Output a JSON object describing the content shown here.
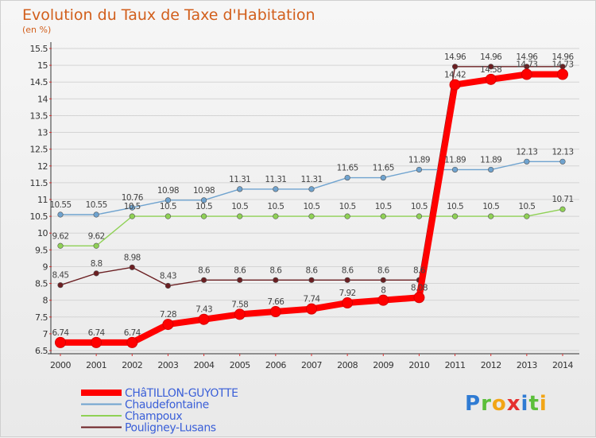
{
  "title": "Evolution du Taux de Taxe d'Habitation",
  "subtitle": "(en %)",
  "brand": {
    "letters": [
      "P",
      "r",
      "o",
      "x",
      "i",
      "t",
      "i"
    ],
    "colors": [
      "#2f7bd3",
      "#5bbf3a",
      "#f2a516",
      "#e53030",
      "#2f7bd3",
      "#5bbf3a",
      "#f2a516"
    ]
  },
  "chart_data": {
    "type": "line",
    "x": [
      2000,
      2001,
      2002,
      2003,
      2004,
      2005,
      2006,
      2007,
      2008,
      2009,
      2010,
      2011,
      2012,
      2013,
      2014
    ],
    "x_labels": [
      "2000",
      "2001",
      "2002",
      "2003",
      "2004",
      "2005",
      "2006",
      "2007",
      "2008",
      "2009",
      "2010",
      "2011",
      "2012",
      "2013",
      "2014"
    ],
    "ylim": [
      6.5,
      15.5
    ],
    "y_ticks": [
      6.5,
      7,
      7.5,
      8,
      8.5,
      9,
      9.5,
      10,
      10.5,
      11,
      11.5,
      12,
      12.5,
      13,
      13.5,
      14,
      14.5,
      15,
      15.5
    ],
    "y_tick_labels": [
      "6.5",
      "7",
      "7.5",
      "8",
      "8.5",
      "9",
      "9.5",
      "10",
      "10.5",
      "11",
      "11.5",
      "12",
      "12.5",
      "13",
      "13.5",
      "14",
      "14.5",
      "15",
      "15.5"
    ],
    "grid": "horizontal",
    "legend_position": "bottom-left",
    "series": [
      {
        "name": "Pouligney-Lusans",
        "color": "#6b1f22",
        "values": [
          8.45,
          8.8,
          8.98,
          8.43,
          8.6,
          8.6,
          8.6,
          8.6,
          8.6,
          8.6,
          8.6,
          14.96,
          14.96,
          14.96,
          14.96
        ],
        "labels": [
          "8.45",
          "8.8",
          "8.98",
          "8.43",
          "8.6",
          "8.6",
          "8.6",
          "8.6",
          "8.6",
          "8.6",
          "8.6",
          "14.96",
          "14.96",
          "14.96",
          "14.96"
        ]
      },
      {
        "name": "Champoux",
        "color": "#8fd155",
        "values": [
          9.62,
          9.62,
          10.5,
          10.5,
          10.5,
          10.5,
          10.5,
          10.5,
          10.5,
          10.5,
          10.5,
          10.5,
          10.5,
          10.5,
          10.71
        ],
        "labels": [
          "9.62",
          "9.62",
          "10.5",
          "10.5",
          "10.5",
          "10.5",
          "10.5",
          "10.5",
          "10.5",
          "10.5",
          "10.5",
          "10.5",
          "10.5",
          "10.5",
          "10.71"
        ]
      },
      {
        "name": "Chaudefontaine",
        "color": "#6fa3cf",
        "values": [
          10.55,
          10.55,
          10.76,
          10.98,
          10.98,
          11.31,
          11.31,
          11.31,
          11.65,
          11.65,
          11.89,
          11.89,
          11.89,
          12.13,
          12.13
        ],
        "labels": [
          "10.55",
          "10.55",
          "10.76",
          "10.98",
          "10.98",
          "11.31",
          "11.31",
          "11.31",
          "11.65",
          "11.65",
          "11.89",
          "11.89",
          "11.89",
          "12.13",
          "12.13"
        ]
      },
      {
        "name": "CHâTILLON-GUYOTTE",
        "color": "#ff0000",
        "values": [
          6.74,
          6.74,
          6.74,
          7.28,
          7.43,
          7.58,
          7.66,
          7.74,
          7.92,
          8,
          8.08,
          14.42,
          14.58,
          14.73,
          14.73
        ],
        "labels": [
          "6.74",
          "6.74",
          "6.74",
          "7.28",
          "7.43",
          "7.58",
          "7.66",
          "7.74",
          "7.92",
          "8",
          "8.08",
          "14.42",
          "14.58",
          "14.73",
          "14.73"
        ]
      }
    ],
    "legend_order": [
      3,
      2,
      1,
      0
    ]
  }
}
